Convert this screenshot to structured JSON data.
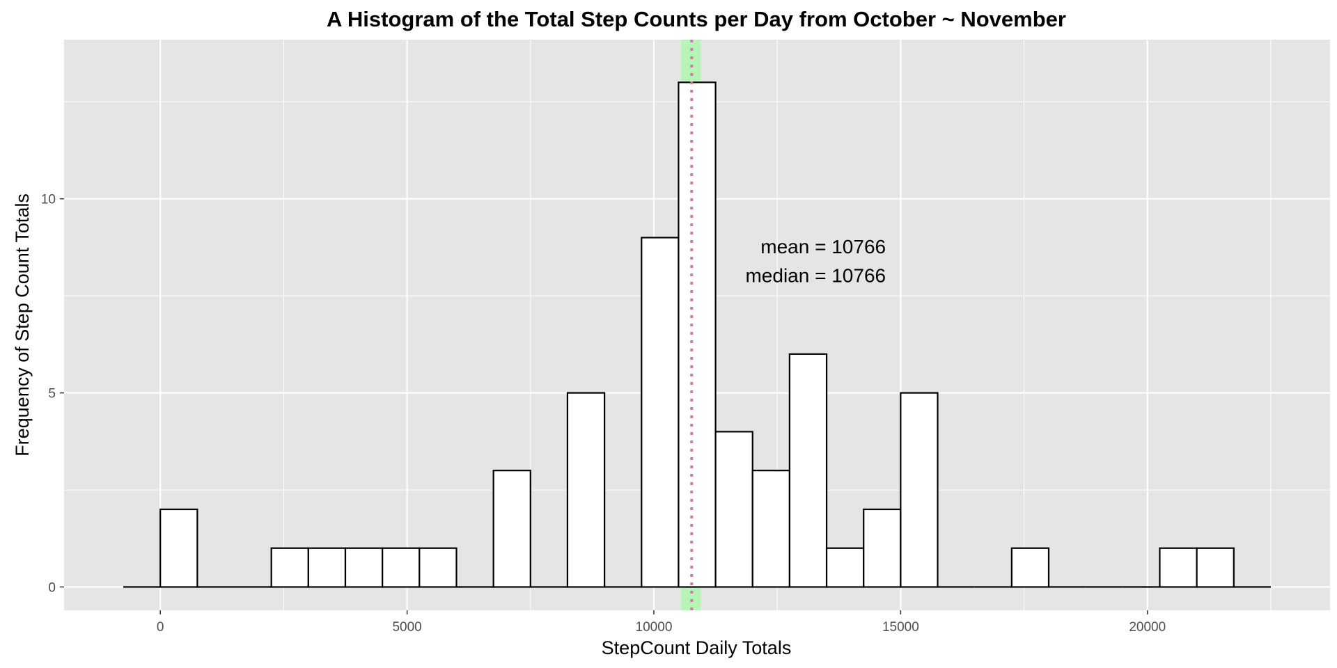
{
  "chart_data": {
    "type": "bar",
    "title": "A Histogram of the Total Step Counts per Day from October ~ November",
    "xlabel": "StepCount Daily Totals",
    "ylabel": "Frequency of Step Count Totals",
    "bin_width": 750,
    "bins": [
      {
        "start": -750,
        "end": 0,
        "count": 0
      },
      {
        "start": 0,
        "end": 750,
        "count": 2
      },
      {
        "start": 750,
        "end": 1500,
        "count": 0
      },
      {
        "start": 1500,
        "end": 2250,
        "count": 0
      },
      {
        "start": 2250,
        "end": 3000,
        "count": 1
      },
      {
        "start": 3000,
        "end": 3750,
        "count": 1
      },
      {
        "start": 3750,
        "end": 4500,
        "count": 1
      },
      {
        "start": 4500,
        "end": 5250,
        "count": 1
      },
      {
        "start": 5250,
        "end": 6000,
        "count": 1
      },
      {
        "start": 6000,
        "end": 6750,
        "count": 0
      },
      {
        "start": 6750,
        "end": 7500,
        "count": 3
      },
      {
        "start": 7500,
        "end": 8250,
        "count": 0
      },
      {
        "start": 8250,
        "end": 9000,
        "count": 5
      },
      {
        "start": 9000,
        "end": 9750,
        "count": 0
      },
      {
        "start": 9750,
        "end": 10500,
        "count": 9
      },
      {
        "start": 10500,
        "end": 11250,
        "count": 13
      },
      {
        "start": 11250,
        "end": 12000,
        "count": 4
      },
      {
        "start": 12000,
        "end": 12750,
        "count": 3
      },
      {
        "start": 12750,
        "end": 13500,
        "count": 6
      },
      {
        "start": 13500,
        "end": 14250,
        "count": 1
      },
      {
        "start": 14250,
        "end": 15000,
        "count": 2
      },
      {
        "start": 15000,
        "end": 15750,
        "count": 5
      },
      {
        "start": 15750,
        "end": 16500,
        "count": 0
      },
      {
        "start": 16500,
        "end": 17250,
        "count": 0
      },
      {
        "start": 17250,
        "end": 18000,
        "count": 1
      },
      {
        "start": 18000,
        "end": 18750,
        "count": 0
      },
      {
        "start": 18750,
        "end": 19500,
        "count": 0
      },
      {
        "start": 19500,
        "end": 20250,
        "count": 0
      },
      {
        "start": 20250,
        "end": 21000,
        "count": 1
      },
      {
        "start": 21000,
        "end": 21750,
        "count": 1
      },
      {
        "start": 21750,
        "end": 22500,
        "count": 0
      }
    ],
    "xlim": [
      -1950,
      23700
    ],
    "ylim": [
      -0.6,
      14.1
    ],
    "x_ticks": [
      0,
      5000,
      10000,
      15000,
      20000
    ],
    "x_minor_ticks": [
      2500,
      7500,
      12500,
      17500,
      22500
    ],
    "y_ticks": [
      0,
      5,
      10
    ],
    "y_minor_ticks": [
      2.5,
      7.5,
      12.5
    ],
    "x_tick_labels": [
      "0",
      "5000",
      "10000",
      "15000",
      "20000"
    ],
    "y_tick_labels": [
      "0",
      "5",
      "10"
    ],
    "grid": true,
    "colors": {
      "panel_background": "#e5e5e5",
      "grid": "#ffffff",
      "bar_fill": "#ffffff",
      "bar_outline": "#000000",
      "band": "#b7f5b7",
      "vline": "#cc79a7"
    },
    "highlight_band": {
      "xmin": 10550,
      "xmax": 10950
    },
    "vline": {
      "x": 10766,
      "style": "dotted"
    },
    "annotations": {
      "mean_text": "mean = 10766",
      "median_text": "median =  10766",
      "mean_pos": {
        "x": 14700,
        "y": 8.6
      },
      "median_pos": {
        "x": 14700,
        "y": 7.85
      }
    }
  }
}
